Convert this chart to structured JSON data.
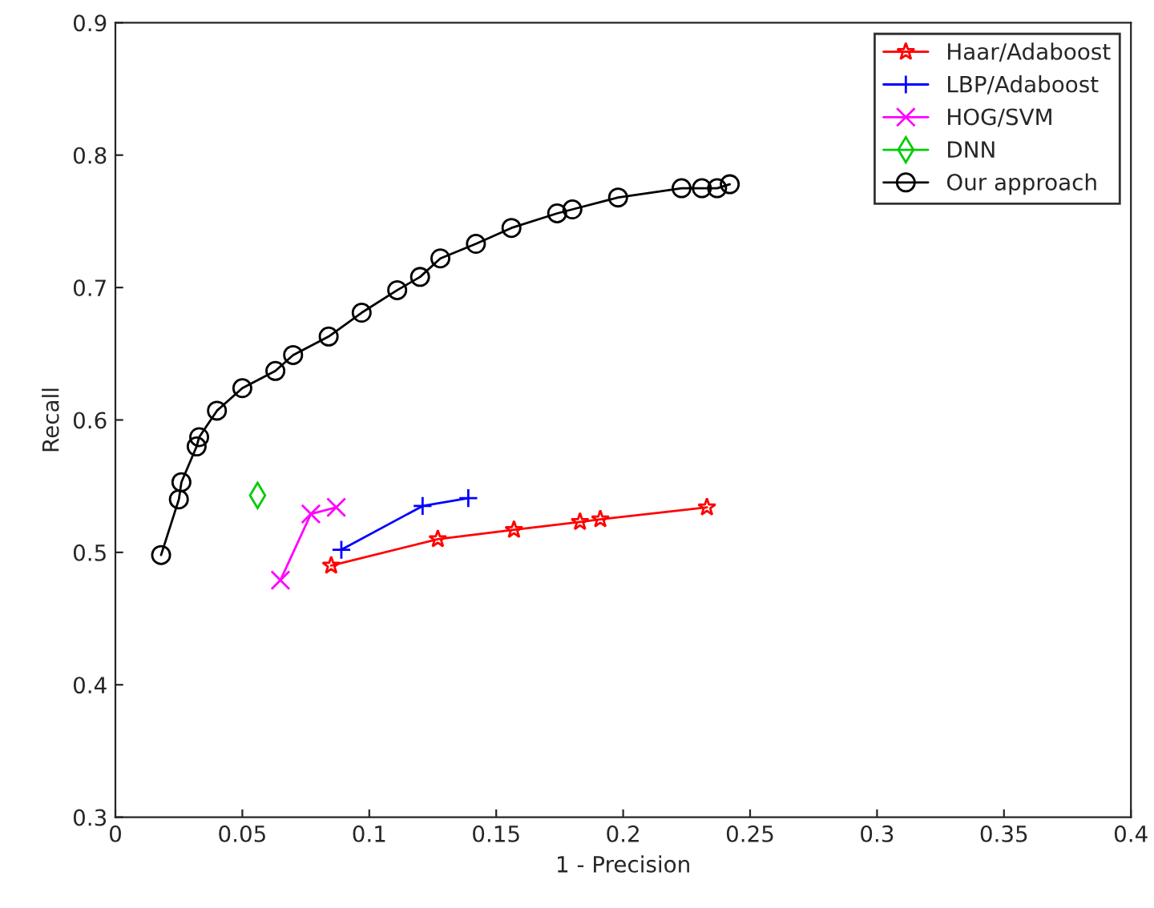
{
  "chart_data": {
    "type": "line",
    "xlabel": "1 - Precision",
    "ylabel": "Recall",
    "xlim": [
      0,
      0.4
    ],
    "ylim": [
      0.3,
      0.9
    ],
    "xticks": [
      0,
      0.05,
      0.1,
      0.15,
      0.2,
      0.25,
      0.3,
      0.35,
      0.4
    ],
    "yticks": [
      0.3,
      0.4,
      0.5,
      0.6,
      0.7,
      0.8,
      0.9
    ],
    "grid": false,
    "legend": "top right",
    "series": [
      {
        "name": "Haar/Adaboost",
        "color": "#ff0000",
        "marker": "star",
        "x": [
          0.085,
          0.127,
          0.157,
          0.183,
          0.191,
          0.233
        ],
        "values": [
          0.49,
          0.51,
          0.517,
          0.523,
          0.525,
          0.534
        ]
      },
      {
        "name": "LBP/Adaboost",
        "color": "#0000ff",
        "marker": "plus",
        "x": [
          0.089,
          0.121,
          0.139
        ],
        "values": [
          0.502,
          0.535,
          0.541
        ]
      },
      {
        "name": "HOG/SVM",
        "color": "#ff00ff",
        "marker": "cross",
        "x": [
          0.065,
          0.077,
          0.087
        ],
        "values": [
          0.479,
          0.529,
          0.534
        ]
      },
      {
        "name": "DNN",
        "color": "#00cc00",
        "marker": "diamond",
        "x": [
          0.056
        ],
        "values": [
          0.543
        ]
      },
      {
        "name": "Our approach",
        "color": "#000000",
        "marker": "circle",
        "x": [
          0.018,
          0.025,
          0.026,
          0.032,
          0.033,
          0.04,
          0.05,
          0.063,
          0.07,
          0.084,
          0.097,
          0.111,
          0.12,
          0.128,
          0.142,
          0.156,
          0.174,
          0.18,
          0.198,
          0.223,
          0.231,
          0.237,
          0.242
        ],
        "values": [
          0.498,
          0.54,
          0.553,
          0.58,
          0.587,
          0.607,
          0.624,
          0.637,
          0.649,
          0.663,
          0.681,
          0.698,
          0.708,
          0.722,
          0.733,
          0.745,
          0.756,
          0.759,
          0.768,
          0.775,
          0.775,
          0.775,
          0.778
        ]
      }
    ]
  }
}
